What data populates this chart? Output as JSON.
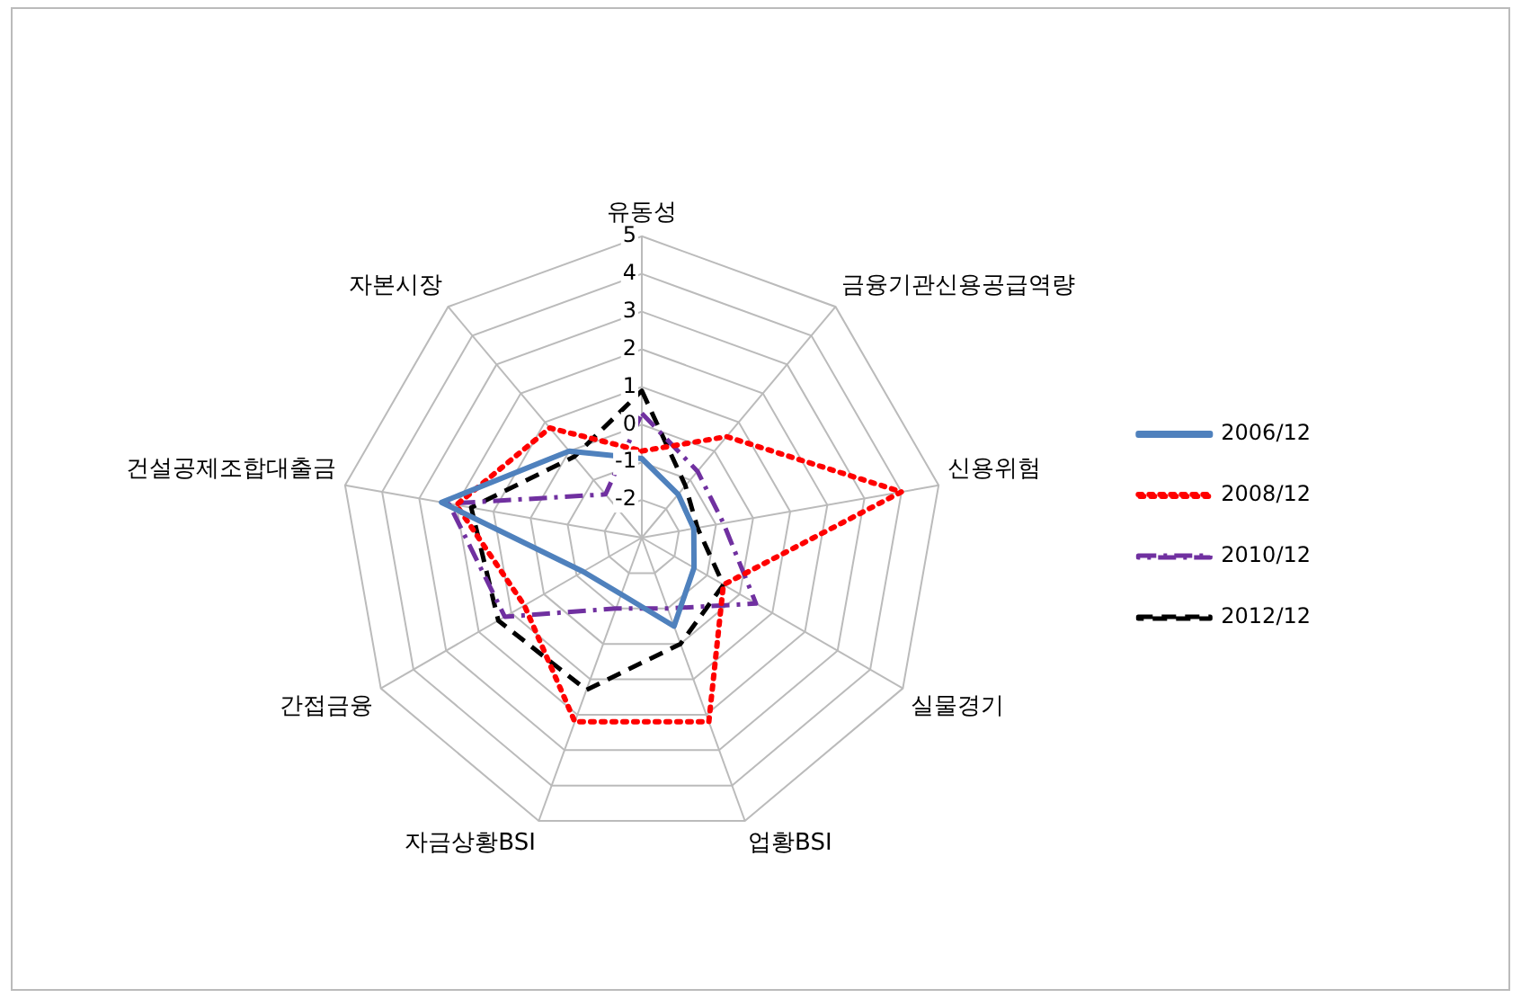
{
  "chart_data": {
    "type": "radar",
    "categories": [
      "유동성",
      "금융기관신용공급역량",
      "신용위험",
      "실물경기",
      "업황BSI",
      "자금상황BSI",
      "간접금융",
      "건설공제조합대출금",
      "자본시장"
    ],
    "series": [
      {
        "name": "2006/12",
        "color": "#4f81bd",
        "line_style": "solid",
        "values": [
          -0.9,
          -1.5,
          -1.6,
          -1.4,
          -0.5,
          -1.4,
          -1.2,
          2.4,
          0
        ]
      },
      {
        "name": "2008/12",
        "color": "#ff0000",
        "line_style": "dotted",
        "values": [
          -0.7,
          0.5,
          4,
          -0.5,
          2.2,
          2.2,
          0.6,
          2,
          0.8
        ]
      },
      {
        "name": "2010/12",
        "color": "#7030a0",
        "line_style": "dashdot",
        "values": [
          0.3,
          -0.7,
          -0.8,
          0.5,
          -1,
          -1,
          1.2,
          2.2,
          -1.5
        ]
      },
      {
        "name": "2012/12",
        "color": "#000000",
        "line_style": "dashed",
        "values": [
          0.9,
          -1.2,
          -1.5,
          -0.5,
          0,
          1.3,
          1.4,
          1.6,
          -0.2
        ]
      }
    ],
    "ylim": [
      -3,
      5
    ],
    "yticks": [
      -2,
      -1,
      0,
      1,
      2,
      3,
      4,
      5
    ],
    "legend": "right",
    "marker": "none",
    "grid": true
  }
}
